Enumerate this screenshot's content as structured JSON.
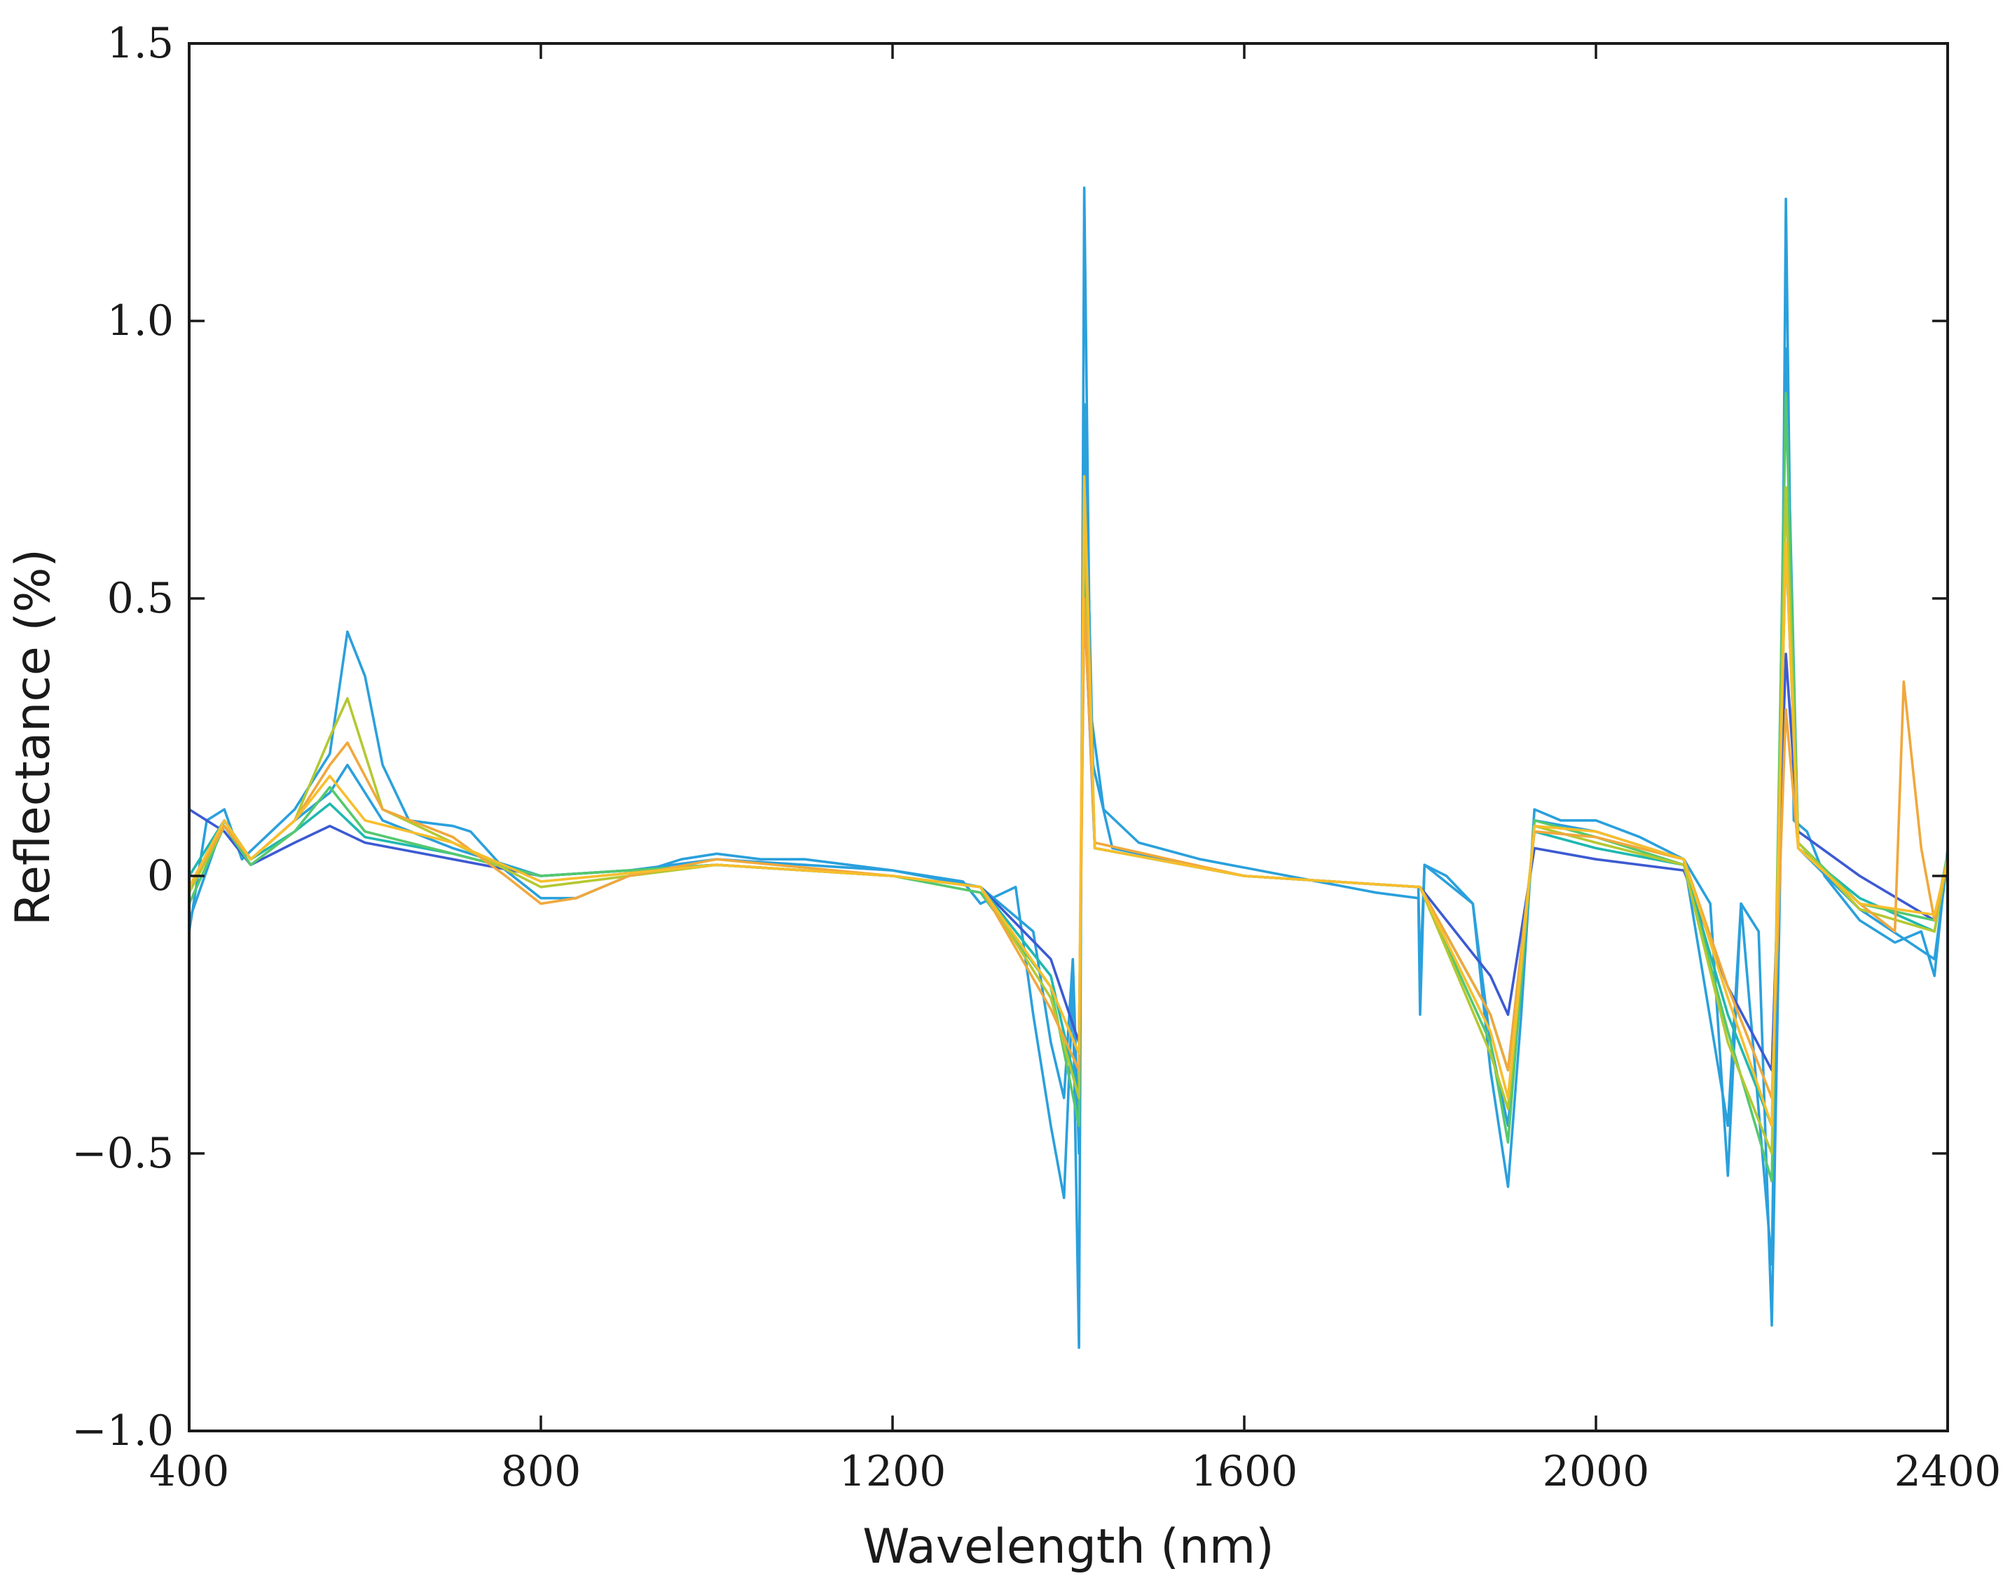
{
  "chart_data": {
    "type": "line",
    "title": "",
    "xlabel": "Wavelength (nm)",
    "ylabel": "Reflectance (%)",
    "xlim": [
      400,
      2400
    ],
    "ylim": [
      -1.0,
      1.5
    ],
    "xticks": [
      400,
      800,
      1200,
      1600,
      2000,
      2400
    ],
    "xtick_labels": [
      "400",
      "800",
      "1200",
      "1600",
      "2000",
      "2400"
    ],
    "yticks": [
      -1.0,
      -0.5,
      0,
      0.5,
      1.0,
      1.5
    ],
    "ytick_labels": [
      "−1.0",
      "−0.5",
      "0",
      "0.5",
      "1.0",
      "1.5"
    ],
    "grid": false,
    "legend": "none",
    "series": [
      {
        "color": "#2aa0dc",
        "points": [
          [
            400,
            -0.1
          ],
          [
            420,
            0.1
          ],
          [
            440,
            0.12
          ],
          [
            460,
            0.03
          ],
          [
            480,
            0.06
          ],
          [
            520,
            0.12
          ],
          [
            560,
            0.22
          ],
          [
            580,
            0.44
          ],
          [
            600,
            0.36
          ],
          [
            620,
            0.2
          ],
          [
            650,
            0.1
          ],
          [
            700,
            0.09
          ],
          [
            720,
            0.08
          ],
          [
            760,
            0.01
          ],
          [
            800,
            -0.04
          ],
          [
            840,
            -0.04
          ],
          [
            900,
            0.0
          ],
          [
            960,
            0.03
          ],
          [
            1000,
            0.04
          ],
          [
            1050,
            0.03
          ],
          [
            1100,
            0.03
          ],
          [
            1200,
            0.01
          ],
          [
            1280,
            -0.01
          ],
          [
            1300,
            -0.05
          ],
          [
            1340,
            -0.02
          ],
          [
            1360,
            -0.25
          ],
          [
            1380,
            -0.45
          ],
          [
            1395,
            -0.58
          ],
          [
            1405,
            -0.2
          ],
          [
            1412,
            -0.85
          ],
          [
            1418,
            1.24
          ],
          [
            1425,
            0.3
          ],
          [
            1440,
            0.12
          ],
          [
            1480,
            0.06
          ],
          [
            1550,
            0.03
          ],
          [
            1650,
            0.0
          ],
          [
            1750,
            -0.03
          ],
          [
            1798,
            -0.04
          ],
          [
            1800,
            -0.25
          ],
          [
            1805,
            0.02
          ],
          [
            1830,
            0.0
          ],
          [
            1860,
            -0.05
          ],
          [
            1880,
            -0.35
          ],
          [
            1900,
            -0.56
          ],
          [
            1915,
            -0.25
          ],
          [
            1930,
            0.12
          ],
          [
            1960,
            0.1
          ],
          [
            2000,
            0.1
          ],
          [
            2050,
            0.07
          ],
          [
            2100,
            0.03
          ],
          [
            2130,
            -0.05
          ],
          [
            2150,
            -0.54
          ],
          [
            2165,
            -0.05
          ],
          [
            2185,
            -0.1
          ],
          [
            2200,
            -0.81
          ],
          [
            2210,
            0.05
          ],
          [
            2216,
            1.22
          ],
          [
            2225,
            0.1
          ],
          [
            2240,
            0.08
          ],
          [
            2260,
            0.0
          ],
          [
            2300,
            -0.08
          ],
          [
            2340,
            -0.12
          ],
          [
            2370,
            -0.1
          ],
          [
            2385,
            -0.18
          ],
          [
            2400,
            0.05
          ]
        ]
      },
      {
        "color": "#2aa0dc",
        "points": [
          [
            400,
            -0.08
          ],
          [
            440,
            0.1
          ],
          [
            470,
            0.03
          ],
          [
            520,
            0.1
          ],
          [
            560,
            0.15
          ],
          [
            580,
            0.2
          ],
          [
            620,
            0.1
          ],
          [
            700,
            0.05
          ],
          [
            800,
            0.0
          ],
          [
            900,
            0.01
          ],
          [
            1000,
            0.03
          ],
          [
            1100,
            0.02
          ],
          [
            1200,
            0.01
          ],
          [
            1300,
            -0.02
          ],
          [
            1360,
            -0.1
          ],
          [
            1380,
            -0.3
          ],
          [
            1395,
            -0.4
          ],
          [
            1405,
            -0.15
          ],
          [
            1412,
            -0.5
          ],
          [
            1418,
            0.85
          ],
          [
            1428,
            0.2
          ],
          [
            1450,
            0.05
          ],
          [
            1600,
            0.0
          ],
          [
            1798,
            -0.02
          ],
          [
            1800,
            -0.18
          ],
          [
            1805,
            0.02
          ],
          [
            1860,
            -0.05
          ],
          [
            1880,
            -0.3
          ],
          [
            1900,
            -0.45
          ],
          [
            1915,
            -0.2
          ],
          [
            1930,
            0.1
          ],
          [
            2000,
            0.08
          ],
          [
            2100,
            0.03
          ],
          [
            2150,
            -0.45
          ],
          [
            2165,
            -0.05
          ],
          [
            2200,
            -0.7
          ],
          [
            2216,
            0.95
          ],
          [
            2230,
            0.05
          ],
          [
            2300,
            -0.06
          ],
          [
            2385,
            -0.15
          ],
          [
            2400,
            0.03
          ]
        ]
      },
      {
        "color": "#3c5ad2",
        "points": [
          [
            400,
            0.12
          ],
          [
            440,
            0.08
          ],
          [
            470,
            0.02
          ],
          [
            520,
            0.06
          ],
          [
            560,
            0.09
          ],
          [
            600,
            0.06
          ],
          [
            700,
            0.03
          ],
          [
            800,
            0.0
          ],
          [
            1000,
            0.02
          ],
          [
            1200,
            0.0
          ],
          [
            1300,
            -0.02
          ],
          [
            1380,
            -0.15
          ],
          [
            1412,
            -0.3
          ],
          [
            1418,
            0.5
          ],
          [
            1430,
            0.05
          ],
          [
            1600,
            0.0
          ],
          [
            1800,
            -0.02
          ],
          [
            1880,
            -0.18
          ],
          [
            1900,
            -0.25
          ],
          [
            1930,
            0.05
          ],
          [
            2000,
            0.03
          ],
          [
            2100,
            0.01
          ],
          [
            2150,
            -0.2
          ],
          [
            2200,
            -0.35
          ],
          [
            2216,
            0.4
          ],
          [
            2230,
            0.08
          ],
          [
            2300,
            0.0
          ],
          [
            2385,
            -0.08
          ],
          [
            2400,
            0.02
          ]
        ]
      },
      {
        "color": "#1fb8b0",
        "points": [
          [
            400,
            0.0
          ],
          [
            440,
            0.1
          ],
          [
            470,
            0.03
          ],
          [
            520,
            0.08
          ],
          [
            560,
            0.13
          ],
          [
            600,
            0.07
          ],
          [
            700,
            0.04
          ],
          [
            800,
            0.0
          ],
          [
            1000,
            0.02
          ],
          [
            1200,
            0.0
          ],
          [
            1300,
            -0.02
          ],
          [
            1380,
            -0.18
          ],
          [
            1412,
            -0.4
          ],
          [
            1418,
            0.6
          ],
          [
            1430,
            0.05
          ],
          [
            1600,
            0.0
          ],
          [
            1800,
            -0.02
          ],
          [
            1880,
            -0.25
          ],
          [
            1900,
            -0.35
          ],
          [
            1930,
            0.08
          ],
          [
            2000,
            0.05
          ],
          [
            2100,
            0.02
          ],
          [
            2150,
            -0.25
          ],
          [
            2200,
            -0.45
          ],
          [
            2216,
            0.6
          ],
          [
            2230,
            0.05
          ],
          [
            2300,
            -0.04
          ],
          [
            2385,
            -0.1
          ],
          [
            2400,
            0.03
          ]
        ]
      },
      {
        "color": "#55c86e",
        "points": [
          [
            400,
            -0.05
          ],
          [
            440,
            0.09
          ],
          [
            470,
            0.02
          ],
          [
            520,
            0.08
          ],
          [
            560,
            0.16
          ],
          [
            600,
            0.08
          ],
          [
            700,
            0.04
          ],
          [
            800,
            0.0
          ],
          [
            1000,
            0.02
          ],
          [
            1200,
            0.0
          ],
          [
            1300,
            -0.03
          ],
          [
            1380,
            -0.2
          ],
          [
            1412,
            -0.45
          ],
          [
            1418,
            0.7
          ],
          [
            1430,
            0.05
          ],
          [
            1600,
            0.0
          ],
          [
            1800,
            -0.02
          ],
          [
            1880,
            -0.3
          ],
          [
            1900,
            -0.48
          ],
          [
            1930,
            0.1
          ],
          [
            2000,
            0.07
          ],
          [
            2100,
            0.02
          ],
          [
            2150,
            -0.28
          ],
          [
            2200,
            -0.55
          ],
          [
            2216,
            0.87
          ],
          [
            2230,
            0.06
          ],
          [
            2300,
            -0.05
          ],
          [
            2385,
            -0.08
          ],
          [
            2400,
            0.04
          ]
        ]
      },
      {
        "color": "#b4c832",
        "points": [
          [
            400,
            -0.03
          ],
          [
            440,
            0.09
          ],
          [
            470,
            0.03
          ],
          [
            520,
            0.1
          ],
          [
            560,
            0.25
          ],
          [
            580,
            0.32
          ],
          [
            620,
            0.12
          ],
          [
            700,
            0.06
          ],
          [
            800,
            -0.02
          ],
          [
            1000,
            0.02
          ],
          [
            1200,
            0.0
          ],
          [
            1300,
            -0.02
          ],
          [
            1380,
            -0.22
          ],
          [
            1412,
            -0.4
          ],
          [
            1418,
            0.65
          ],
          [
            1430,
            0.05
          ],
          [
            1600,
            0.0
          ],
          [
            1800,
            -0.02
          ],
          [
            1880,
            -0.32
          ],
          [
            1900,
            -0.42
          ],
          [
            1930,
            0.09
          ],
          [
            2000,
            0.06
          ],
          [
            2100,
            0.02
          ],
          [
            2150,
            -0.3
          ],
          [
            2200,
            -0.5
          ],
          [
            2216,
            0.7
          ],
          [
            2230,
            0.06
          ],
          [
            2300,
            -0.06
          ],
          [
            2385,
            -0.1
          ],
          [
            2400,
            0.03
          ]
        ]
      },
      {
        "color": "#f0a83c",
        "points": [
          [
            400,
            -0.02
          ],
          [
            440,
            0.09
          ],
          [
            470,
            0.03
          ],
          [
            520,
            0.1
          ],
          [
            560,
            0.2
          ],
          [
            580,
            0.24
          ],
          [
            620,
            0.12
          ],
          [
            700,
            0.07
          ],
          [
            760,
            0.0
          ],
          [
            800,
            -0.05
          ],
          [
            840,
            -0.04
          ],
          [
            900,
            0.0
          ],
          [
            1000,
            0.03
          ],
          [
            1200,
            0.0
          ],
          [
            1300,
            -0.02
          ],
          [
            1380,
            -0.24
          ],
          [
            1412,
            -0.35
          ],
          [
            1418,
            0.5
          ],
          [
            1430,
            0.06
          ],
          [
            1600,
            0.0
          ],
          [
            1800,
            -0.02
          ],
          [
            1880,
            -0.25
          ],
          [
            1900,
            -0.35
          ],
          [
            1930,
            0.08
          ],
          [
            2000,
            0.07
          ],
          [
            2100,
            0.03
          ],
          [
            2150,
            -0.2
          ],
          [
            2200,
            -0.4
          ],
          [
            2216,
            0.3
          ],
          [
            2230,
            0.05
          ],
          [
            2300,
            -0.05
          ],
          [
            2340,
            -0.1
          ],
          [
            2350,
            0.35
          ],
          [
            2370,
            0.05
          ],
          [
            2385,
            -0.08
          ],
          [
            2400,
            0.03
          ]
        ]
      },
      {
        "color": "#f8be2c",
        "points": [
          [
            400,
            -0.02
          ],
          [
            440,
            0.1
          ],
          [
            470,
            0.03
          ],
          [
            520,
            0.1
          ],
          [
            560,
            0.18
          ],
          [
            600,
            0.1
          ],
          [
            700,
            0.06
          ],
          [
            800,
            -0.01
          ],
          [
            1000,
            0.02
          ],
          [
            1200,
            0.0
          ],
          [
            1300,
            -0.02
          ],
          [
            1380,
            -0.2
          ],
          [
            1412,
            -0.32
          ],
          [
            1418,
            0.72
          ],
          [
            1430,
            0.05
          ],
          [
            1600,
            0.0
          ],
          [
            1800,
            -0.02
          ],
          [
            1880,
            -0.28
          ],
          [
            1900,
            -0.4
          ],
          [
            1930,
            0.09
          ],
          [
            2000,
            0.08
          ],
          [
            2100,
            0.03
          ],
          [
            2150,
            -0.22
          ],
          [
            2200,
            -0.45
          ],
          [
            2216,
            0.6
          ],
          [
            2230,
            0.05
          ],
          [
            2300,
            -0.05
          ],
          [
            2385,
            -0.07
          ],
          [
            2400,
            0.03
          ]
        ]
      }
    ]
  }
}
